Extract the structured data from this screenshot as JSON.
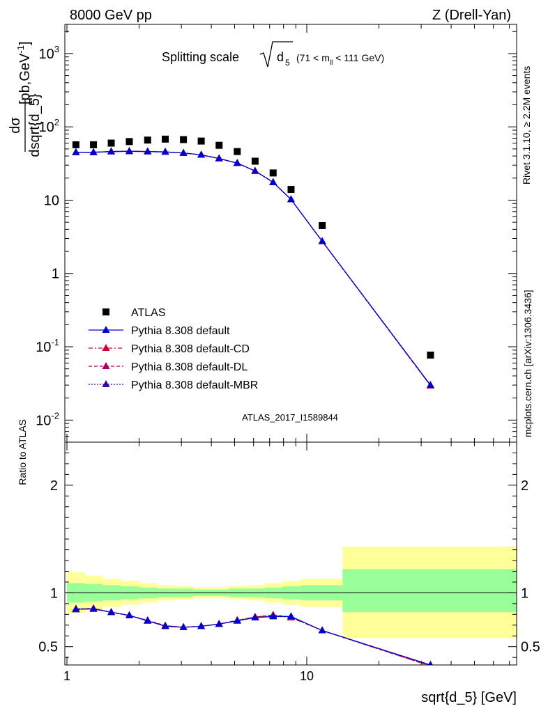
{
  "header": {
    "left": "8000 GeV pp",
    "right": "Z (Drell-Yan)"
  },
  "side_labels": {
    "rivet": "Rivet 3.1.10, ≥ 2.2M events",
    "source": "mcplots.cern.ch [arXiv:1306.3436]"
  },
  "analysis_id": "ATLAS_2017_I1589844",
  "colors": {
    "data": "#000000",
    "default": "#0000cc",
    "cd": "#cc0033",
    "dl": "#aa0066",
    "mbr": "#3300aa",
    "band_outer": "#ffff99",
    "band_inner": "#99ff99"
  },
  "chart_data": [
    {
      "type": "scatter",
      "panel": "main",
      "title_main": "Splitting scale",
      "title_sqrt": "d",
      "title_sub": "5",
      "title_range_pre": "(71 < m",
      "title_range_sub": "ll",
      "title_range_post": " < 111 GeV)",
      "ylabel_num": "dσ",
      "ylabel_den": "dsqrt{d_5}",
      "ylabel_unit": "[pb,GeV",
      "ylabel_unit_sup": "-1",
      "ylabel_unit_end": "]",
      "xlabel": "sqrt{d_5} [GeV]",
      "xscale": "log",
      "yscale": "log",
      "xlim": [
        0.98,
        75
      ],
      "ylim": [
        0.005,
        2500
      ],
      "x_ticks": [
        "1",
        "10"
      ],
      "y_ticks": [
        {
          "base": "10",
          "exp": "-2",
          "value": 0.01
        },
        {
          "base": "10",
          "exp": "-1",
          "value": 0.1
        },
        {
          "base": "1",
          "exp": "",
          "value": 1
        },
        {
          "base": "10",
          "exp": "",
          "value": 10
        },
        {
          "base": "10",
          "exp": "2",
          "value": 100
        },
        {
          "base": "10",
          "exp": "3",
          "value": 1000
        }
      ],
      "legend_position": "lower-left",
      "series": [
        {
          "name": "ATLAS",
          "key": "data",
          "marker": "square",
          "x": [
            1.09,
            1.29,
            1.53,
            1.82,
            2.17,
            2.57,
            3.06,
            3.63,
            4.31,
            5.13,
            6.09,
            7.24,
            8.6,
            11.6,
            32.8
          ],
          "y": [
            57,
            57,
            60,
            63,
            66,
            68,
            67,
            64,
            56,
            46,
            34,
            23.5,
            14,
            4.5,
            0.077
          ]
        },
        {
          "name": "Pythia 8.308 default",
          "key": "default",
          "marker": "triangle",
          "dash": "",
          "x": [
            1.09,
            1.29,
            1.53,
            1.82,
            2.17,
            2.57,
            3.06,
            3.63,
            4.31,
            5.13,
            6.09,
            7.24,
            8.6,
            11.6,
            32.8
          ],
          "y": [
            45,
            45,
            46,
            46.5,
            46,
            45.5,
            44,
            41.5,
            37,
            32,
            25,
            17.5,
            10.2,
            2.75,
            0.03
          ]
        },
        {
          "name": "Pythia 8.308 default-CD",
          "key": "cd",
          "marker": "triangle",
          "dash": "6,3,2,3",
          "x": [
            1.09,
            1.29,
            1.53,
            1.82,
            2.17,
            2.57,
            3.06,
            3.63,
            4.31,
            5.13,
            6.09,
            7.24,
            8.6,
            11.6,
            32.8
          ],
          "y": [
            45,
            45,
            46,
            46.5,
            46,
            45.5,
            44,
            41.5,
            37,
            32,
            25,
            17.6,
            10.2,
            2.74,
            0.0295
          ]
        },
        {
          "name": "Pythia 8.308 default-DL",
          "key": "dl",
          "marker": "triangle",
          "dash": "5,3",
          "x": [
            1.09,
            1.29,
            1.53,
            1.82,
            2.17,
            2.57,
            3.06,
            3.63,
            4.31,
            5.13,
            6.09,
            7.24,
            8.6,
            11.6,
            32.8
          ],
          "y": [
            45,
            45,
            46,
            46.5,
            46,
            45.5,
            44,
            41.5,
            37,
            32,
            25,
            17.6,
            10.2,
            2.74,
            0.0295
          ]
        },
        {
          "name": "Pythia 8.308 default-MBR",
          "key": "mbr",
          "marker": "triangle",
          "dash": "2,2",
          "x": [
            1.09,
            1.29,
            1.53,
            1.82,
            2.17,
            2.57,
            3.06,
            3.63,
            4.31,
            5.13,
            6.09,
            7.24,
            8.6,
            11.6,
            32.8
          ],
          "y": [
            45,
            45,
            46,
            46.5,
            46,
            45.5,
            44,
            41.5,
            37,
            32,
            25,
            17.5,
            10.2,
            2.75,
            0.03
          ]
        }
      ]
    },
    {
      "type": "line",
      "panel": "ratio",
      "ylabel": "Ratio to ATLAS",
      "xlabel": "sqrt{d_5} [GeV]",
      "xscale": "log",
      "xlim": [
        0.98,
        75
      ],
      "ylim": [
        0.33,
        2.4
      ],
      "y_ticks": [
        "0.5",
        "1",
        "2"
      ],
      "x_ticks": [
        "1",
        "10"
      ],
      "bin_edges": [
        1.0,
        1.19,
        1.41,
        1.68,
        2.0,
        2.37,
        2.82,
        3.35,
        3.98,
        4.73,
        5.62,
        6.68,
        7.94,
        9.44,
        14.1,
        75
      ],
      "band_outer": {
        "low": [
          0.81,
          0.84,
          0.87,
          0.89,
          0.91,
          0.93,
          0.94,
          0.95,
          0.95,
          0.94,
          0.93,
          0.91,
          0.89,
          0.87,
          0.58
        ],
        "high": [
          1.19,
          1.16,
          1.13,
          1.11,
          1.09,
          1.07,
          1.06,
          1.05,
          1.05,
          1.06,
          1.07,
          1.09,
          1.11,
          1.13,
          1.43
        ]
      },
      "band_inner": {
        "low": [
          0.91,
          0.92,
          0.93,
          0.94,
          0.95,
          0.96,
          0.96,
          0.97,
          0.97,
          0.96,
          0.96,
          0.95,
          0.94,
          0.93,
          0.82
        ],
        "high": [
          1.09,
          1.08,
          1.07,
          1.06,
          1.05,
          1.04,
          1.04,
          1.03,
          1.03,
          1.04,
          1.04,
          1.05,
          1.06,
          1.07,
          1.22
        ]
      },
      "x": [
        1.09,
        1.29,
        1.53,
        1.82,
        2.17,
        2.57,
        3.06,
        3.63,
        4.31,
        5.13,
        6.09,
        7.24,
        8.6,
        11.6,
        32.8
      ],
      "series": [
        {
          "name": "Pythia 8.308 default",
          "key": "default",
          "dash": "",
          "y": [
            0.85,
            0.85,
            0.82,
            0.79,
            0.74,
            0.69,
            0.68,
            0.69,
            0.71,
            0.74,
            0.77,
            0.78,
            0.78,
            0.65,
            0.33
          ]
        },
        {
          "name": "Pythia 8.308 default-CD",
          "key": "cd",
          "dash": "6,3,2,3",
          "y": [
            0.85,
            0.855,
            0.82,
            0.79,
            0.74,
            0.695,
            0.68,
            0.69,
            0.71,
            0.745,
            0.775,
            0.79,
            0.77,
            0.65,
            0.32
          ]
        },
        {
          "name": "Pythia 8.308 default-DL",
          "key": "dl",
          "dash": "5,3",
          "y": [
            0.85,
            0.855,
            0.82,
            0.79,
            0.745,
            0.695,
            0.68,
            0.69,
            0.71,
            0.745,
            0.775,
            0.795,
            0.775,
            0.65,
            0.32
          ]
        },
        {
          "name": "Pythia 8.308 default-MBR",
          "key": "mbr",
          "dash": "2,2",
          "y": [
            0.845,
            0.85,
            0.82,
            0.79,
            0.74,
            0.69,
            0.68,
            0.69,
            0.71,
            0.74,
            0.775,
            0.785,
            0.78,
            0.65,
            0.33
          ]
        }
      ]
    }
  ]
}
